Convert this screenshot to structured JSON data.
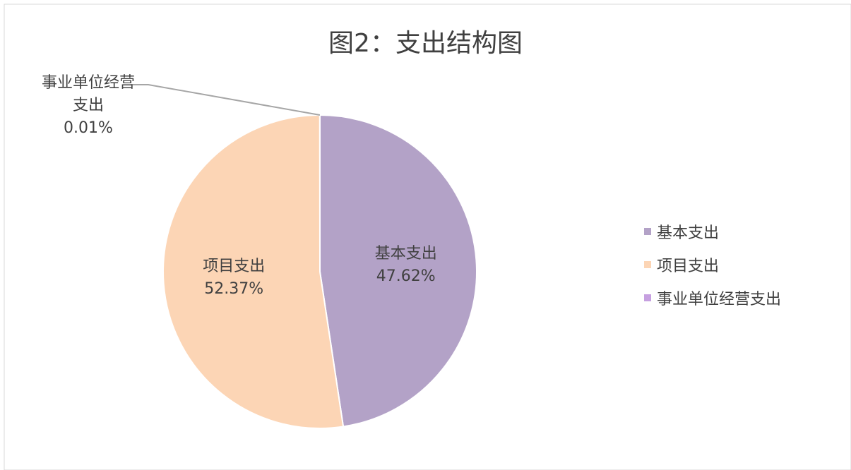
{
  "chart_data": {
    "type": "pie",
    "title": "图2：支出结构图",
    "categories": [
      "基本支出",
      "项目支出",
      "事业单位经营支出"
    ],
    "values": [
      47.62,
      52.37,
      0.01
    ],
    "value_labels": [
      "47.62%",
      "52.37%",
      "0.01%"
    ],
    "colors": [
      "#b3a2c7",
      "#fcd5b5",
      "#c6a0e0"
    ],
    "legend": "right"
  }
}
